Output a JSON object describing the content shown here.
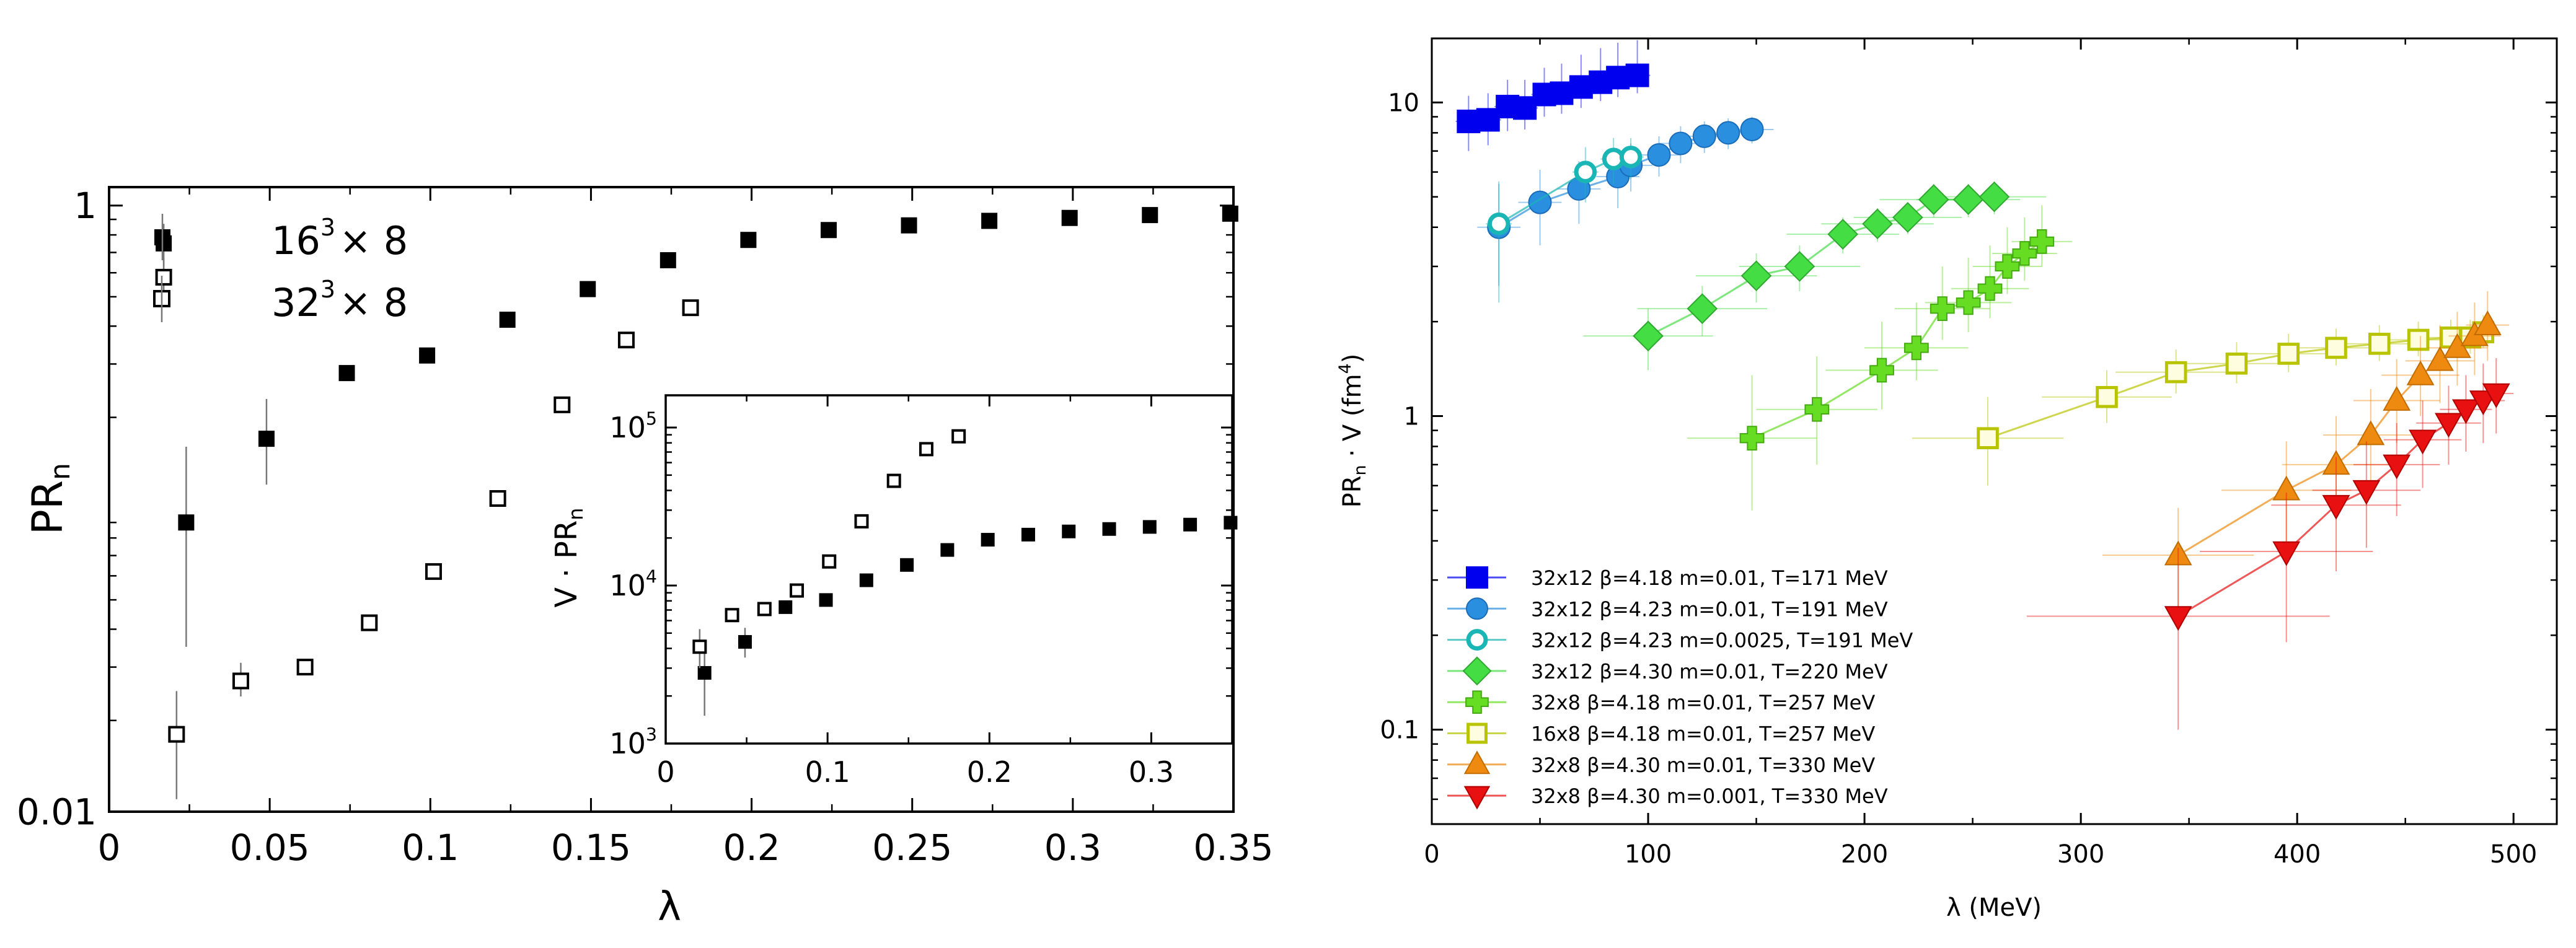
{
  "chart_data": [
    {
      "type": "scatter",
      "xlabel": "λ",
      "ylabel_main": "PR",
      "ylabel_sub": "n",
      "xlim": [
        0,
        0.35
      ],
      "ylim": [
        0.01,
        1.15
      ],
      "yscale": "log",
      "x_ticks": [
        {
          "v": 0,
          "label": "0"
        },
        {
          "v": 0.05,
          "label": "0.05"
        },
        {
          "v": 0.1,
          "label": "0.1"
        },
        {
          "v": 0.15,
          "label": "0.15"
        },
        {
          "v": 0.2,
          "label": "0.2"
        },
        {
          "v": 0.25,
          "label": "0.25"
        },
        {
          "v": 0.3,
          "label": "0.3"
        },
        {
          "v": 0.35,
          "label": "0.35"
        }
      ],
      "y_ticks": [
        {
          "v": 0.01,
          "label": "0.01"
        },
        {
          "v": 1,
          "label": "1"
        }
      ],
      "legend": [
        {
          "base": "16",
          "sup": "3",
          "rest": "× 8",
          "marker": "filled-square"
        },
        {
          "base": "32",
          "sup": "3",
          "rest": "× 8",
          "marker": "open-square"
        }
      ],
      "series": [
        {
          "marker": "filled-square",
          "points": [
            {
              "x": 0.017,
              "y": 0.75,
              "ylo": 0.63,
              "yhi": 0.87
            },
            {
              "x": 0.024,
              "y": 0.09,
              "ylo": 0.035,
              "yhi": 0.16
            },
            {
              "x": 0.049,
              "y": 0.17,
              "ylo": 0.12,
              "yhi": 0.23
            },
            {
              "x": 0.074,
              "y": 0.28
            },
            {
              "x": 0.099,
              "y": 0.32
            },
            {
              "x": 0.124,
              "y": 0.42
            },
            {
              "x": 0.149,
              "y": 0.53
            },
            {
              "x": 0.174,
              "y": 0.66
            },
            {
              "x": 0.199,
              "y": 0.77
            },
            {
              "x": 0.224,
              "y": 0.83
            },
            {
              "x": 0.249,
              "y": 0.86
            },
            {
              "x": 0.274,
              "y": 0.89
            },
            {
              "x": 0.299,
              "y": 0.91
            },
            {
              "x": 0.324,
              "y": 0.93
            },
            {
              "x": 0.349,
              "y": 0.94
            }
          ]
        },
        {
          "marker": "open-square",
          "points": [
            {
              "x": 0.017,
              "y": 0.58,
              "ylo": 0.5,
              "yhi": 0.67
            },
            {
              "x": 0.021,
              "y": 0.018,
              "ylo": 0.011,
              "yhi": 0.025
            },
            {
              "x": 0.041,
              "y": 0.027,
              "ylo": 0.024,
              "yhi": 0.031
            },
            {
              "x": 0.061,
              "y": 0.03
            },
            {
              "x": 0.081,
              "y": 0.042
            },
            {
              "x": 0.101,
              "y": 0.062
            },
            {
              "x": 0.121,
              "y": 0.108
            },
            {
              "x": 0.141,
              "y": 0.22
            },
            {
              "x": 0.161,
              "y": 0.36
            },
            {
              "x": 0.181,
              "y": 0.46
            }
          ]
        }
      ]
    },
    {
      "type": "scatter",
      "inset": true,
      "ylabel": "V · PR",
      "ylabel_sub": "n",
      "xlim": [
        0,
        0.35
      ],
      "ylim": [
        1000,
        160000
      ],
      "yscale": "log",
      "x_ticks": [
        {
          "v": 0,
          "label": "0"
        },
        {
          "v": 0.1,
          "label": "0.1"
        },
        {
          "v": 0.2,
          "label": "0.2"
        },
        {
          "v": 0.3,
          "label": "0.3"
        }
      ],
      "y_ticks": [
        {
          "v": 1000,
          "base": "10",
          "sup": "3"
        },
        {
          "v": 10000,
          "base": "10",
          "sup": "4"
        },
        {
          "v": 100000,
          "base": "10",
          "sup": "5"
        }
      ],
      "series": [
        {
          "marker": "filled-square",
          "points": [
            {
              "x": 0.024,
              "y": 2800,
              "ylo": 1500,
              "yhi": 4200
            },
            {
              "x": 0.049,
              "y": 4400,
              "ylo": 3500,
              "yhi": 5400
            },
            {
              "x": 0.074,
              "y": 7300
            },
            {
              "x": 0.099,
              "y": 8100
            },
            {
              "x": 0.124,
              "y": 10800
            },
            {
              "x": 0.149,
              "y": 13500
            },
            {
              "x": 0.174,
              "y": 16800
            },
            {
              "x": 0.199,
              "y": 19500
            },
            {
              "x": 0.224,
              "y": 21000
            },
            {
              "x": 0.249,
              "y": 22000
            },
            {
              "x": 0.274,
              "y": 22800
            },
            {
              "x": 0.299,
              "y": 23500
            },
            {
              "x": 0.324,
              "y": 24300
            },
            {
              "x": 0.349,
              "y": 25000
            }
          ]
        },
        {
          "marker": "open-square",
          "points": [
            {
              "x": 0.021,
              "y": 4100,
              "ylo": 3000,
              "yhi": 5300
            },
            {
              "x": 0.041,
              "y": 6500
            },
            {
              "x": 0.061,
              "y": 7100
            },
            {
              "x": 0.081,
              "y": 9300
            },
            {
              "x": 0.101,
              "y": 14200
            },
            {
              "x": 0.121,
              "y": 25500
            },
            {
              "x": 0.141,
              "y": 46000
            },
            {
              "x": 0.161,
              "y": 73000
            },
            {
              "x": 0.181,
              "y": 88000
            }
          ]
        }
      ]
    },
    {
      "type": "scatter",
      "xlabel": "λ (MeV)",
      "ylabel": "PR",
      "ylabel_sub": "n",
      "ylabel_rest": " · V (fm",
      "ylabel_sup": "4",
      "ylabel_end": ")",
      "xlim": [
        0,
        520
      ],
      "ylim": [
        0.05,
        16
      ],
      "yscale": "log",
      "x_ticks": [
        {
          "v": 0,
          "label": "0"
        },
        {
          "v": 100,
          "label": "100"
        },
        {
          "v": 200,
          "label": "200"
        },
        {
          "v": 300,
          "label": "300"
        },
        {
          "v": 400,
          "label": "400"
        },
        {
          "v": 500,
          "label": "500"
        }
      ],
      "y_ticks": [
        {
          "v": 0.1,
          "label": "0.1"
        },
        {
          "v": 1,
          "label": "1"
        },
        {
          "v": 10,
          "label": "10"
        }
      ],
      "legend_placement": "bottom-left",
      "series": [
        {
          "name": "32x12 β=4.18 m=0.01, T=171 MeV",
          "marker": "square",
          "color": "#0000ee",
          "fill": true,
          "x": [
            17,
            26,
            35,
            43,
            52,
            60,
            69,
            78,
            86,
            95
          ],
          "y": [
            8.7,
            8.8,
            9.7,
            9.6,
            10.6,
            10.7,
            11.2,
            11.6,
            12.0,
            12.2
          ],
          "xerr": [
            6,
            6,
            6,
            6,
            6,
            6,
            6,
            6,
            6,
            6
          ],
          "yerr_lo": [
            1.7,
            1.5,
            1.6,
            1.4,
            1.6,
            1.5,
            1.6,
            1.5,
            1.6,
            1.5
          ],
          "yerr_hi": [
            1.8,
            1.9,
            2.1,
            2.2,
            2.3,
            2.6,
            3.0,
            3.3,
            3.5,
            3.6
          ]
        },
        {
          "name": "32x12 β=4.23 m=0.01, T=191 MeV",
          "marker": "circle",
          "color": "#2b8fe0",
          "fill": true,
          "x": [
            31,
            50,
            68,
            86,
            92,
            105,
            115,
            126,
            137,
            148
          ],
          "y": [
            4.0,
            4.8,
            5.3,
            5.8,
            6.3,
            6.8,
            7.4,
            7.8,
            8.0,
            8.2
          ],
          "xerr": [
            10,
            10,
            10,
            10,
            10,
            10,
            10,
            10,
            10,
            10
          ],
          "yerr_lo": [
            1.4,
            1.3,
            1.2,
            1.2,
            1.1,
            1.0,
            1.0,
            0.9,
            0.9,
            0.8
          ],
          "yerr_hi": [
            1.5,
            1.3,
            1.2,
            1.2,
            1.1,
            1.0,
            1.0,
            0.9,
            0.9,
            0.8
          ]
        },
        {
          "name": "32x12 β=4.23 m=0.0025, T=191 MeV",
          "marker": "ring",
          "color": "#1ab5b5",
          "fill": false,
          "x": [
            31,
            71,
            84,
            92
          ],
          "y": [
            4.1,
            6.0,
            6.6,
            6.7
          ],
          "xerr": [
            6,
            6,
            6,
            6
          ],
          "yerr_lo": [
            1.8,
            1.2,
            1.1,
            1.0
          ],
          "yerr_hi": [
            1.5,
            1.2,
            1.1,
            1.0
          ]
        },
        {
          "name": "32x12 β=4.30 m=0.01, T=220 MeV",
          "marker": "diamond",
          "color": "#44dd44",
          "fill": true,
          "x": [
            100,
            125,
            150,
            170,
            190,
            206,
            220,
            232,
            248,
            260
          ],
          "y": [
            1.8,
            2.2,
            2.8,
            3.0,
            3.8,
            4.1,
            4.3,
            4.9,
            4.9,
            5.0
          ],
          "xerr": [
            30,
            30,
            28,
            28,
            26,
            26,
            25,
            25,
            24,
            24
          ],
          "yerr_lo": [
            0.4,
            0.4,
            0.5,
            0.5,
            0.5,
            0.5,
            0.5,
            0.6,
            0.6,
            0.6
          ],
          "yerr_hi": [
            0.4,
            0.4,
            0.5,
            0.5,
            0.5,
            0.5,
            0.5,
            0.6,
            0.6,
            0.6
          ]
        },
        {
          "name": "32x8 β=4.18 m=0.01, T=257 MeV",
          "marker": "cross",
          "color": "#66dd22",
          "fill": true,
          "x": [
            148,
            178,
            208,
            224,
            236,
            248,
            258,
            266,
            274,
            282
          ],
          "y": [
            0.85,
            1.05,
            1.4,
            1.65,
            2.2,
            2.3,
            2.55,
            3.0,
            3.3,
            3.6
          ],
          "xerr": [
            30,
            28,
            26,
            24,
            22,
            20,
            18,
            16,
            15,
            14
          ],
          "yerr_lo": [
            0.35,
            0.35,
            0.35,
            0.35,
            0.45,
            0.45,
            0.5,
            0.55,
            0.6,
            0.6
          ],
          "yerr_hi": [
            0.5,
            0.5,
            0.6,
            0.65,
            0.8,
            0.9,
            0.95,
            1.0,
            1.0,
            1.1
          ]
        },
        {
          "name": "16x8 β=4.18 m=0.01, T=257 MeV",
          "marker": "square-open",
          "color": "#b8c400",
          "fill": false,
          "x": [
            257,
            312,
            344,
            372,
            396,
            418,
            438,
            456,
            471,
            480,
            486
          ],
          "y": [
            0.85,
            1.15,
            1.38,
            1.47,
            1.58,
            1.65,
            1.7,
            1.75,
            1.78,
            1.78,
            1.85
          ],
          "xerr": [
            35,
            30,
            28,
            25,
            22,
            20,
            18,
            15,
            12,
            10,
            8
          ],
          "yerr_lo": [
            0.25,
            0.2,
            0.2,
            0.2,
            0.2,
            0.2,
            0.2,
            0.2,
            0.2,
            0.2,
            0.2
          ],
          "yerr_hi": [
            0.3,
            0.25,
            0.25,
            0.25,
            0.25,
            0.25,
            0.25,
            0.25,
            0.25,
            0.25,
            0.25
          ]
        },
        {
          "name": "32x8 β=4.30 m=0.01, T=330 MeV",
          "marker": "triangle-up",
          "color": "#ee8a10",
          "fill": true,
          "x": [
            345,
            395,
            418,
            434,
            446,
            457,
            466,
            474,
            482,
            488
          ],
          "y": [
            0.36,
            0.58,
            0.7,
            0.87,
            1.12,
            1.35,
            1.5,
            1.65,
            1.8,
            1.95
          ],
          "xerr": [
            35,
            30,
            25,
            22,
            20,
            18,
            16,
            14,
            12,
            10
          ],
          "yerr_lo": [
            0.12,
            0.2,
            0.22,
            0.25,
            0.3,
            0.35,
            0.4,
            0.4,
            0.45,
            0.45
          ],
          "yerr_hi": [
            0.15,
            0.25,
            0.3,
            0.35,
            0.4,
            0.45,
            0.45,
            0.5,
            0.5,
            0.55
          ]
        },
        {
          "name": "32x8 β=4.30 m=0.001, T=330 MeV",
          "marker": "triangle-down",
          "color": "#e81010",
          "fill": true,
          "x": [
            345,
            395,
            418,
            432,
            446,
            458,
            470,
            478,
            486,
            492
          ],
          "y": [
            0.23,
            0.37,
            0.52,
            0.58,
            0.7,
            0.84,
            0.95,
            1.05,
            1.12,
            1.18
          ],
          "xerr": [
            70,
            40,
            30,
            25,
            20,
            18,
            15,
            12,
            10,
            8
          ],
          "yerr_lo": [
            0.13,
            0.18,
            0.2,
            0.2,
            0.22,
            0.25,
            0.25,
            0.28,
            0.3,
            0.3
          ],
          "yerr_hi": [
            0.15,
            0.2,
            0.22,
            0.25,
            0.25,
            0.28,
            0.3,
            0.3,
            0.35,
            0.35
          ]
        }
      ]
    }
  ]
}
